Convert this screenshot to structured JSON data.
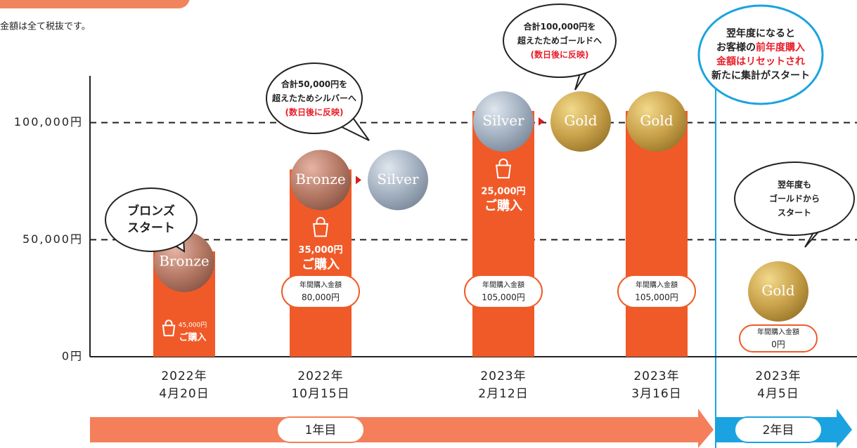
{
  "chart_data": {
    "type": "bar",
    "note": "金額は全て税抜です。",
    "categories": [
      [
        "2022年",
        "4月20日"
      ],
      [
        "2022年",
        "10月15日"
      ],
      [
        "2023年",
        "2月12日"
      ],
      [
        "2023年",
        "3月16日"
      ],
      [
        "2023年",
        "4月5日"
      ]
    ],
    "values": [
      45000,
      80000,
      105000,
      105000,
      0
    ],
    "value_labels": [
      null,
      "80,000円",
      "105,000円",
      "105,000円",
      "0円"
    ],
    "annual_label": "年間購入金額",
    "color": "#f05a28",
    "ylim": [
      0,
      120000
    ],
    "yticks": [
      {
        "value": 0,
        "label": "0円"
      },
      {
        "value": 50000,
        "label": "50,000円"
      },
      {
        "value": 100000,
        "label": "100,000円"
      }
    ],
    "grid": true,
    "purchases": [
      {
        "amount": "45,000円",
        "label": "ご購入"
      },
      {
        "amount": "35,000円",
        "label": "ご購入"
      },
      {
        "amount": "25,000円",
        "label": "ご購入"
      },
      null,
      null
    ],
    "coins": [
      [
        "Bronze"
      ],
      [
        "Bronze",
        "Silver"
      ],
      [
        "Silver",
        "Gold"
      ],
      [
        "Gold"
      ],
      [
        "Gold"
      ]
    ],
    "callouts": [
      {
        "lines": [
          [
            {
              "t": "ブロンズ"
            }
          ],
          [
            {
              "t": "スタート"
            }
          ]
        ]
      },
      {
        "lines": [
          [
            {
              "t": "合計50,000円を"
            }
          ],
          [
            {
              "t": "超えたためシルバーへ"
            }
          ],
          [
            {
              "t": "(数日後に反映)",
              "red": true
            }
          ]
        ]
      },
      {
        "lines": [
          [
            {
              "t": "合計100,000円を"
            }
          ],
          [
            {
              "t": "超えたためゴールドへ"
            }
          ],
          [
            {
              "t": "(数日後に反映)",
              "red": true
            }
          ]
        ]
      },
      {
        "lines": [
          [
            {
              "t": "翌年度になると"
            }
          ],
          [
            {
              "t": "お客様の"
            },
            {
              "t": "前年度購入",
              "red": true
            }
          ],
          [
            {
              "t": "金額はリセットされ",
              "red": true
            }
          ],
          [
            {
              "t": "新たに集計がスタート"
            }
          ]
        ]
      },
      {
        "lines": [
          [
            {
              "t": "翌年度も"
            }
          ],
          [
            {
              "t": "ゴールドから"
            }
          ],
          [
            {
              "t": "スタート"
            }
          ]
        ]
      }
    ],
    "periods": [
      {
        "label": "1年目",
        "color": "#f47f5a"
      },
      {
        "label": "2年目",
        "color": "#1aa3e0"
      }
    ]
  }
}
